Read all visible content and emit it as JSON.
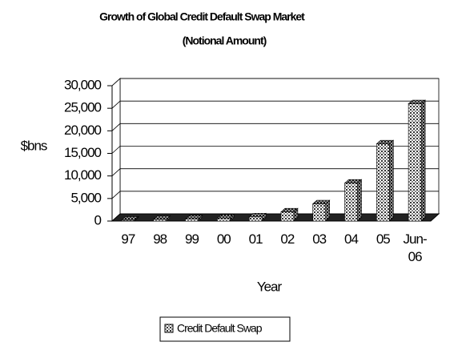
{
  "chart_data": {
    "type": "bar3d",
    "title": "Growth of Global Credit Default Swap Market",
    "subtitle": "(Notional Amount)",
    "y_label": "$bns",
    "x_label": "Year",
    "categories": [
      "97",
      "98",
      "99",
      "00",
      "01",
      "02",
      "03",
      "04",
      "05",
      "Jun-06"
    ],
    "series": [
      {
        "name": "Credit Default Swap",
        "color": "#ffffff",
        "values": [
          180,
          350,
          500,
          630,
          920,
          2000,
          3800,
          8400,
          17100,
          26000
        ]
      }
    ],
    "ylim": [
      0,
      30000
    ],
    "yticks": [
      0,
      {
        "value": 5000,
        "label": "5,000"
      },
      {
        "value": 10000,
        "label": "10,000"
      },
      {
        "value": 15000,
        "label": "15,000"
      },
      {
        "value": 20000,
        "label": "20,000"
      },
      {
        "value": 25000,
        "label": "25,000"
      },
      {
        "value": 30000,
        "label": "30,000"
      }
    ],
    "grid": true
  }
}
